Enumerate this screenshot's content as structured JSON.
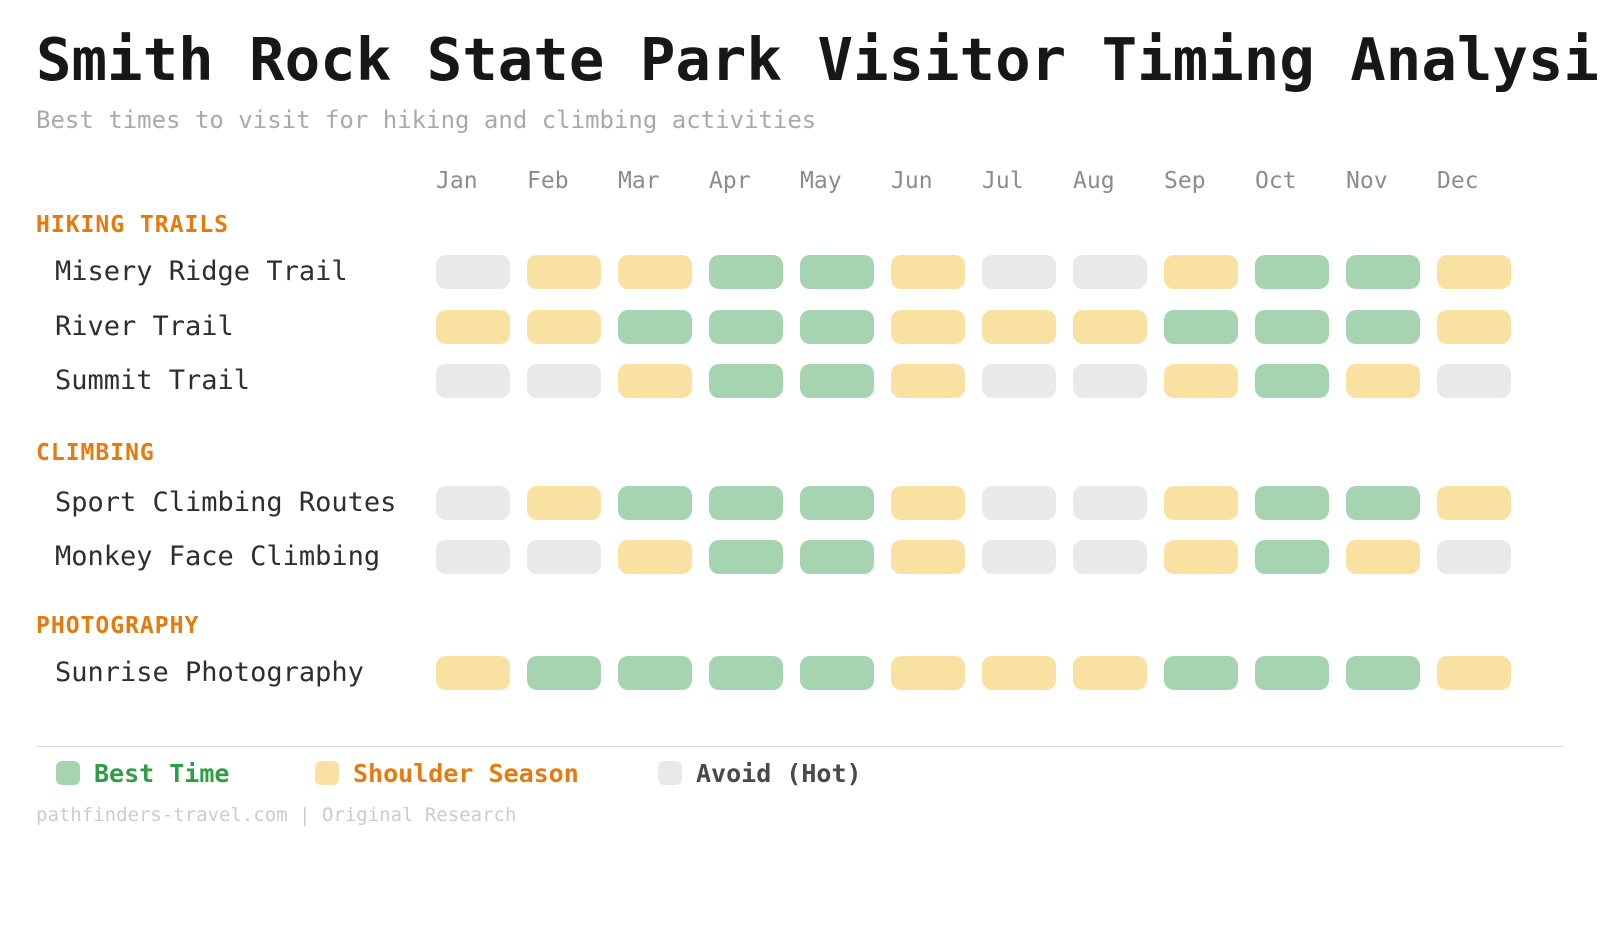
{
  "page": {
    "title": "Smith Rock State Park Visitor Timing Analysis",
    "subtitle": "Best times to visit for hiking and climbing activities",
    "footer": "pathfinders-travel.com | Original Research"
  },
  "colors": {
    "cell": {
      "best": "#a7d4b0",
      "shoulder": "#f9e2a1",
      "avoid": "#e9e9e9"
    },
    "legend_text": {
      "best": "#2e9e44",
      "shoulder": "#e67a0d",
      "avoid": "#494949"
    },
    "section_header": "#e67a0d"
  },
  "chart_data": {
    "type": "heatmap",
    "months": [
      "Jan",
      "Feb",
      "Mar",
      "Apr",
      "May",
      "Jun",
      "Jul",
      "Aug",
      "Sep",
      "Oct",
      "Nov",
      "Dec"
    ],
    "legend": [
      {
        "key": "best",
        "label": "Best Time"
      },
      {
        "key": "shoulder",
        "label": "Shoulder Season"
      },
      {
        "key": "avoid",
        "label": "Avoid (Hot)"
      }
    ],
    "sections": [
      {
        "name": "HIKING TRAILS",
        "rows": [
          {
            "label": "Misery Ridge Trail",
            "values": [
              "avoid",
              "shoulder",
              "shoulder",
              "best",
              "best",
              "shoulder",
              "avoid",
              "avoid",
              "shoulder",
              "best",
              "best",
              "shoulder"
            ]
          },
          {
            "label": "River Trail",
            "values": [
              "shoulder",
              "shoulder",
              "best",
              "best",
              "best",
              "shoulder",
              "shoulder",
              "shoulder",
              "best",
              "best",
              "best",
              "shoulder"
            ]
          },
          {
            "label": "Summit Trail",
            "values": [
              "avoid",
              "avoid",
              "shoulder",
              "best",
              "best",
              "shoulder",
              "avoid",
              "avoid",
              "shoulder",
              "best",
              "shoulder",
              "avoid"
            ]
          }
        ]
      },
      {
        "name": "CLIMBING",
        "rows": [
          {
            "label": "Sport Climbing Routes",
            "values": [
              "avoid",
              "shoulder",
              "best",
              "best",
              "best",
              "shoulder",
              "avoid",
              "avoid",
              "shoulder",
              "best",
              "best",
              "shoulder"
            ]
          },
          {
            "label": "Monkey Face Climbing",
            "values": [
              "avoid",
              "avoid",
              "shoulder",
              "best",
              "best",
              "shoulder",
              "avoid",
              "avoid",
              "shoulder",
              "best",
              "shoulder",
              "avoid"
            ]
          }
        ]
      },
      {
        "name": "PHOTOGRAPHY",
        "rows": [
          {
            "label": "Sunrise Photography",
            "values": [
              "shoulder",
              "best",
              "best",
              "best",
              "best",
              "shoulder",
              "shoulder",
              "shoulder",
              "best",
              "best",
              "best",
              "shoulder"
            ]
          }
        ]
      }
    ]
  }
}
